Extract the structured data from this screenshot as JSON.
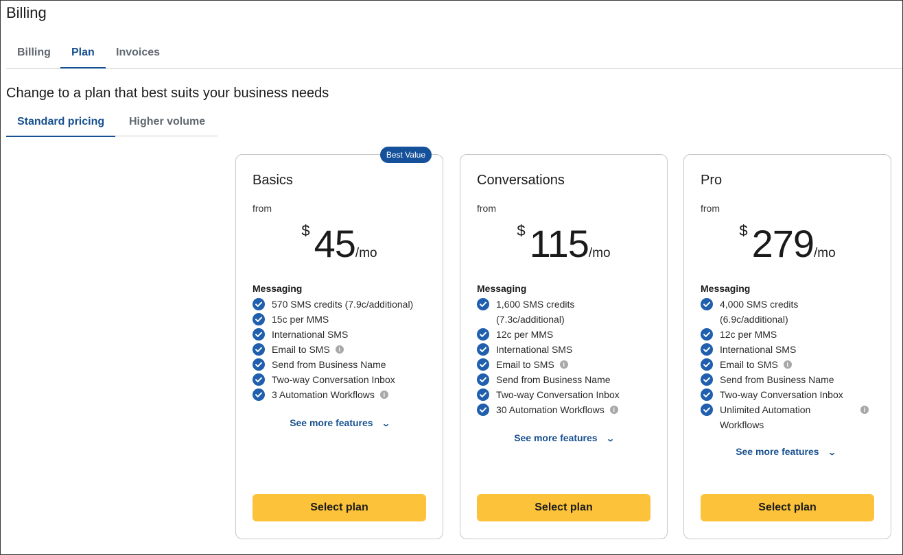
{
  "page": {
    "title": "Billing",
    "subtitle": "Change to a plan that best suits your business needs"
  },
  "tabs": [
    {
      "label": "Billing"
    },
    {
      "label": "Plan"
    },
    {
      "label": "Invoices"
    }
  ],
  "pricing_tabs": [
    {
      "label": "Standard pricing"
    },
    {
      "label": "Higher volume"
    }
  ],
  "colors": {
    "accent": "#17508f",
    "badge": "#15509a",
    "button": "#fcc23a",
    "check": "#1f5fad"
  },
  "plans": [
    {
      "name": "Basics",
      "badge": "Best Value",
      "from": "from",
      "currency": "$",
      "price": "45",
      "period": "/mo",
      "section": "Messaging",
      "features": [
        "570 SMS credits (7.9c/additional)",
        "15c per MMS",
        "International SMS",
        "Email to SMS",
        "Send from Business Name",
        "Two-way Conversation Inbox",
        "3 Automation Workflows"
      ],
      "more": "See more features",
      "button": "Select plan"
    },
    {
      "name": "Conversations",
      "from": "from",
      "currency": "$",
      "price": "115",
      "period": "/mo",
      "section": "Messaging",
      "features": [
        "1,600 SMS credits (7.3c/additional)",
        "12c per MMS",
        "International SMS",
        "Email to SMS",
        "Send from Business Name",
        "Two-way Conversation Inbox",
        "30 Automation Workflows"
      ],
      "more": "See more features",
      "button": "Select plan"
    },
    {
      "name": "Pro",
      "from": "from",
      "currency": "$",
      "price": "279",
      "period": "/mo",
      "section": "Messaging",
      "features": [
        "4,000 SMS credits (6.9c/additional)",
        "12c per MMS",
        "International SMS",
        "Email to SMS",
        "Send from Business Name",
        "Two-way Conversation Inbox",
        "Unlimited Automation Workflows"
      ],
      "more": "See more features",
      "button": "Select plan"
    }
  ]
}
